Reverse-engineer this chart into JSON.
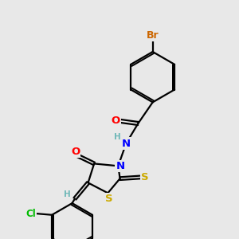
{
  "background_color": "#e8e8e8",
  "atom_colors": {
    "C": "#000000",
    "H": "#70b8b8",
    "N": "#0000ff",
    "O": "#ff0000",
    "S": "#ccaa00",
    "Br": "#cc6600",
    "Cl": "#00bb00"
  },
  "bond_color": "#000000",
  "bond_width": 1.6,
  "font_size": 8.5,
  "figsize": [
    3.0,
    3.0
  ],
  "dpi": 100
}
